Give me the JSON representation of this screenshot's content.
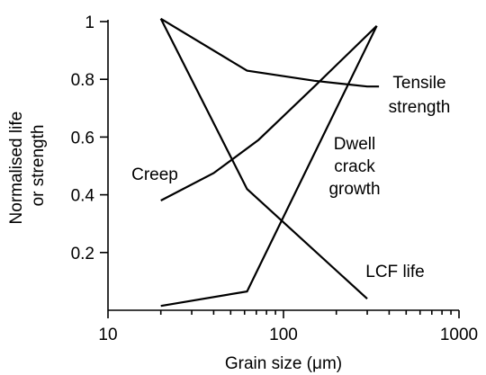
{
  "chart_data": {
    "type": "line",
    "title": "",
    "xlabel": "Grain size (μm)",
    "ylabel_lines": [
      "Normalised life",
      "or strength"
    ],
    "x_scale": "log",
    "xlim": [
      10,
      1000
    ],
    "ylim": [
      0,
      1
    ],
    "x_ticks": [
      10,
      100,
      1000
    ],
    "x_tick_labels": [
      "10",
      "100",
      "1000"
    ],
    "y_ticks": [
      0.2,
      0.4,
      0.6,
      0.8,
      1.0
    ],
    "y_tick_labels": [
      "0.2",
      "0.4",
      "0.6",
      "0.8",
      "1"
    ],
    "grid": false,
    "legend": "none",
    "series": [
      {
        "key": "tensile",
        "label_lines": [
          "Tensile",
          "strength"
        ],
        "points": [
          [
            20,
            1.01
          ],
          [
            62,
            0.83
          ],
          [
            150,
            0.795
          ],
          [
            300,
            0.775
          ],
          [
            350,
            0.775
          ]
        ]
      },
      {
        "key": "creep",
        "label_lines": [
          "Creep"
        ],
        "points": [
          [
            20,
            0.38
          ],
          [
            40,
            0.475
          ],
          [
            72,
            0.59
          ],
          [
            150,
            0.775
          ],
          [
            340,
            0.985
          ]
        ]
      },
      {
        "key": "dwell",
        "label_lines": [
          "Dwell",
          "crack",
          "growth"
        ],
        "points": [
          [
            20,
            0.015
          ],
          [
            62,
            0.065
          ],
          [
            340,
            0.985
          ]
        ]
      },
      {
        "key": "lcf",
        "label_lines": [
          "LCF life"
        ],
        "points": [
          [
            20,
            1.01
          ],
          [
            62,
            0.42
          ],
          [
            300,
            0.04
          ]
        ]
      }
    ]
  }
}
